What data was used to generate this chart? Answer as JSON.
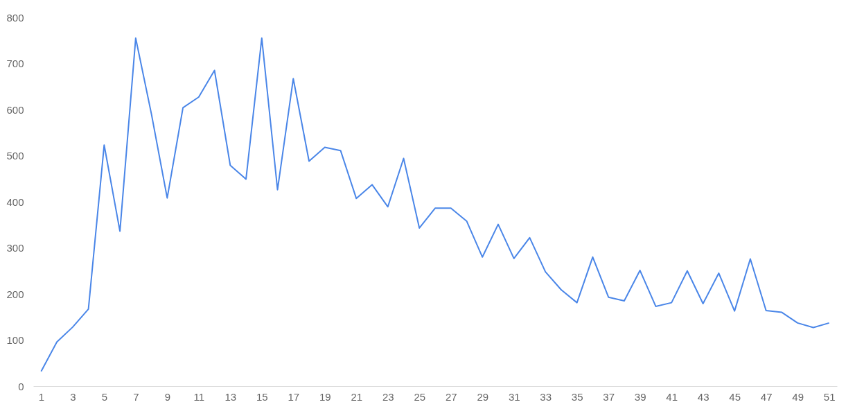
{
  "chart_data": {
    "type": "line",
    "x": [
      1,
      2,
      3,
      4,
      5,
      6,
      7,
      8,
      9,
      10,
      11,
      12,
      13,
      14,
      15,
      16,
      17,
      18,
      19,
      20,
      21,
      22,
      23,
      24,
      25,
      26,
      27,
      28,
      29,
      30,
      31,
      32,
      33,
      34,
      35,
      36,
      37,
      38,
      39,
      40,
      41,
      42,
      43,
      44,
      45,
      46,
      47,
      48,
      49,
      50,
      51
    ],
    "series": [
      {
        "color": "#4a86e8",
        "values": [
          32,
          96,
          128,
          167,
          523,
          336,
          755,
          590,
          408,
          604,
          627,
          685,
          479,
          449,
          755,
          426,
          667,
          488,
          518,
          511,
          407,
          437,
          389,
          494,
          343,
          386,
          386,
          358,
          280,
          351,
          277,
          322,
          248,
          209,
          181,
          280,
          193,
          185,
          251,
          173,
          181,
          250,
          179,
          245,
          163,
          276,
          164,
          160,
          137,
          127,
          137
        ]
      }
    ],
    "xlim": [
      0.5,
      51.5
    ],
    "xticks": [
      1,
      3,
      5,
      7,
      9,
      11,
      13,
      15,
      17,
      19,
      21,
      23,
      25,
      27,
      29,
      31,
      33,
      35,
      37,
      39,
      41,
      43,
      45,
      47,
      49,
      51
    ],
    "ylim": [
      0,
      800
    ],
    "yticks": [
      0,
      100,
      200,
      300,
      400,
      500,
      600,
      700,
      800
    ],
    "marker": "none",
    "line_style": "solid"
  }
}
